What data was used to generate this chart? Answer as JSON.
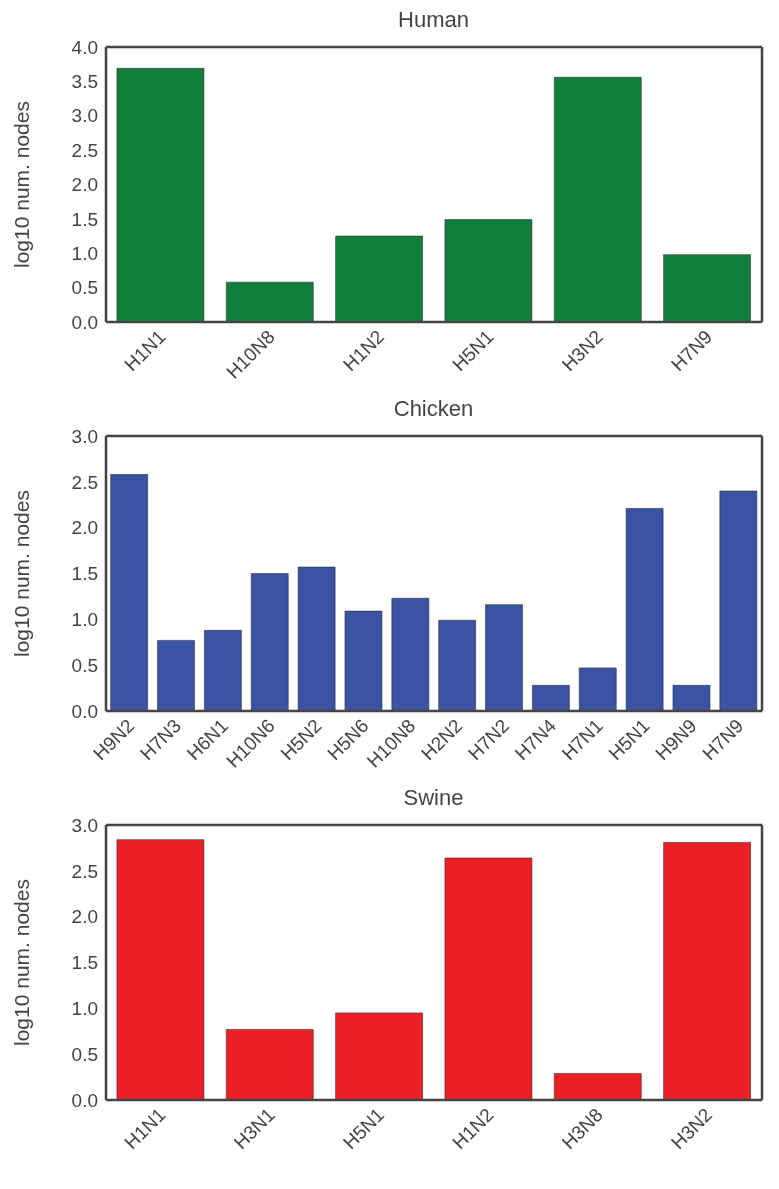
{
  "chart_data": [
    {
      "type": "bar",
      "title": "Human",
      "ylabel": "log10 num. nodes",
      "categories": [
        "H1N1",
        "H10N8",
        "H1N2",
        "H5N1",
        "H3N2",
        "H7N9"
      ],
      "values": [
        3.69,
        0.58,
        1.25,
        1.49,
        3.56,
        0.98
      ],
      "color": "#127e3c",
      "ylim": [
        0,
        4
      ],
      "yticks": [
        {
          "value": 0,
          "label": "0.0"
        },
        {
          "value": 0.5,
          "label": "0.5"
        },
        {
          "value": 1,
          "label": "1.0"
        },
        {
          "value": 1.5,
          "label": "1.5"
        },
        {
          "value": 2,
          "label": "2.0"
        },
        {
          "value": 2.5,
          "label": "2.5"
        },
        {
          "value": 3,
          "label": "3.0"
        },
        {
          "value": 3.5,
          "label": "3.5"
        },
        {
          "value": 4,
          "label": "4.0"
        }
      ],
      "grid": false,
      "legend": false
    },
    {
      "type": "bar",
      "title": "Chicken",
      "ylabel": "log10 num. nodes",
      "categories": [
        "H9N2",
        "H7N3",
        "H6N1",
        "H10N6",
        "H5N2",
        "H5N6",
        "H10N8",
        "H2N2",
        "H7N2",
        "H7N4",
        "H7N1",
        "H5N1",
        "H9N9",
        "H7N9"
      ],
      "values": [
        2.58,
        0.77,
        0.88,
        1.5,
        1.57,
        1.09,
        1.23,
        0.99,
        1.16,
        0.28,
        0.47,
        2.21,
        0.28,
        2.4
      ],
      "color": "#3a53a4",
      "ylim": [
        0,
        3
      ],
      "yticks": [
        {
          "value": 0,
          "label": "0.0"
        },
        {
          "value": 0.5,
          "label": "0.5"
        },
        {
          "value": 1,
          "label": "1.0"
        },
        {
          "value": 1.5,
          "label": "1.5"
        },
        {
          "value": 2,
          "label": "2.0"
        },
        {
          "value": 2.5,
          "label": "2.5"
        },
        {
          "value": 3,
          "label": "3.0"
        }
      ],
      "grid": false,
      "legend": false
    },
    {
      "type": "bar",
      "title": "Swine",
      "ylabel": "log10 num. nodes",
      "categories": [
        "H1N1",
        "H3N1",
        "H5N1",
        "H1N2",
        "H3N8",
        "H3N2"
      ],
      "values": [
        2.84,
        0.77,
        0.95,
        2.64,
        0.29,
        2.81
      ],
      "color": "#ec1f25",
      "ylim": [
        0,
        3
      ],
      "yticks": [
        {
          "value": 0,
          "label": "0.0"
        },
        {
          "value": 0.5,
          "label": "0.5"
        },
        {
          "value": 1,
          "label": "1.0"
        },
        {
          "value": 1.5,
          "label": "1.5"
        },
        {
          "value": 2,
          "label": "2.0"
        },
        {
          "value": 2.5,
          "label": "2.5"
        },
        {
          "value": 3,
          "label": "3.0"
        }
      ],
      "grid": false,
      "legend": false
    }
  ]
}
